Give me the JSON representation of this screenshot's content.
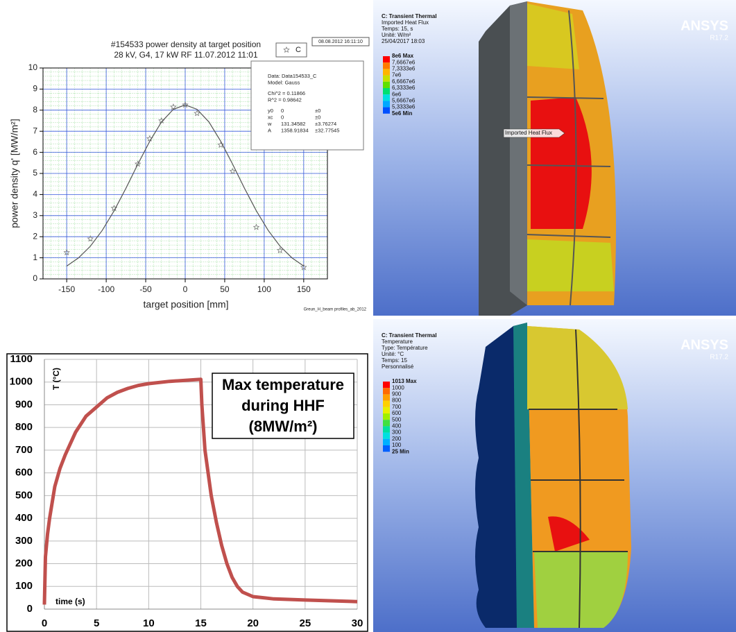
{
  "chart_data": [
    {
      "type": "scatter",
      "title": "#154533 power density at target position",
      "subtitle": "28 kV, G4, 17 kW RF   11.07.2012 11:01",
      "x_label": "target position [mm]",
      "y_label": "power density q' [MW/m²]",
      "xlim": [
        -180,
        180
      ],
      "ylim": [
        0,
        10
      ],
      "xticks": [
        -150,
        -100,
        -50,
        0,
        50,
        100,
        150
      ],
      "yticks": [
        0,
        1,
        2,
        3,
        4,
        5,
        6,
        7,
        8,
        9,
        10
      ],
      "grid": true,
      "series": [
        {
          "name": "C",
          "marker": "star",
          "color": "#777777",
          "x": [
            -150,
            -120,
            -90,
            -60,
            -45,
            -30,
            -15,
            0,
            15,
            45,
            60,
            90,
            120,
            150
          ],
          "values": [
            1.25,
            1.9,
            3.35,
            5.45,
            6.65,
            7.5,
            8.15,
            8.25,
            7.85,
            6.35,
            5.1,
            2.45,
            1.35,
            0.55
          ]
        },
        {
          "marker": "line",
          "color": "#555555",
          "x": [
            -150,
            -135,
            -120,
            -105,
            -90,
            -75,
            -60,
            -45,
            -30,
            -15,
            0,
            15,
            30,
            45,
            60,
            75,
            90,
            105,
            120,
            135,
            150
          ],
          "values": [
            0.61,
            1.0,
            1.55,
            2.3,
            3.23,
            4.3,
            5.44,
            6.52,
            7.44,
            8.04,
            8.25,
            8.04,
            7.44,
            6.52,
            5.44,
            4.3,
            3.23,
            2.3,
            1.55,
            1.0,
            0.61
          ]
        }
      ],
      "timestamp": "08.08.2012 16:11:10",
      "fit_box": [
        [
          "Data: Data154533_C"
        ],
        [
          "Model: Gauss"
        ],
        [
          "Chi^2  = 0.11866"
        ],
        [
          "R^2  = 0.98642"
        ],
        [
          "y0",
          "0",
          "±0"
        ],
        [
          "xc",
          "0",
          "±0"
        ],
        [
          "w",
          "131.34582",
          "±3.76274"
        ],
        [
          "A",
          "1358.91834",
          "±32.77545"
        ]
      ],
      "footer": "Greun_H_beam profiles_ab_2012"
    },
    {
      "type": "line",
      "x_label": "time (s)",
      "y_label": "T (°C)",
      "xlim": [
        0,
        30
      ],
      "ylim": [
        0,
        1100
      ],
      "xticks": [
        0,
        5,
        10,
        15,
        20,
        25,
        30
      ],
      "yticks": [
        0,
        100,
        200,
        300,
        400,
        500,
        600,
        700,
        800,
        900,
        1000,
        1100
      ],
      "grid": true,
      "series": [
        {
          "color": "#c0504d",
          "x": [
            0,
            0.1,
            0.3,
            0.5,
            1,
            1.5,
            2,
            3,
            4,
            5,
            6,
            7,
            8,
            9,
            10,
            12,
            14,
            15,
            15.1,
            15.4,
            16,
            16.5,
            17,
            17.5,
            18,
            18.5,
            19,
            20,
            22,
            25,
            30
          ],
          "values": [
            20,
            230,
            330,
            400,
            540,
            620,
            680,
            780,
            850,
            890,
            930,
            955,
            972,
            985,
            993,
            1003,
            1009,
            1012,
            900,
            700,
            500,
            380,
            280,
            200,
            140,
            100,
            75,
            55,
            45,
            40,
            33
          ]
        }
      ],
      "annotation": [
        "Max temperature",
        "during HHF",
        "(8MW/m²)"
      ]
    }
  ],
  "ansys_panels": [
    {
      "header": [
        "C: Transient Thermal",
        "Imported Heat Flux",
        "Temps: 15, s",
        "Unité: W/m²",
        "25/04/2017 18:03"
      ],
      "legend": [
        "8e6 Max",
        "7,6667e6",
        "7,3333e6",
        "7e6",
        "6,6667e6",
        "6,3333e6",
        "6e6",
        "5,6667e6",
        "5,3333e6",
        "5e6 Min"
      ],
      "colors": [
        "#ff0000",
        "#ff7a00",
        "#ffb400",
        "#c8e000",
        "#60e000",
        "#00e070",
        "#00e0e0",
        "#00a8ff",
        "#0050ff"
      ],
      "brand": "ANSYS",
      "version": "R17.2",
      "callout": "Imported Heat Flux"
    },
    {
      "header": [
        "C: Transient Thermal",
        "Temperature",
        "Type: Température",
        "Unité: °C",
        "Temps: 15",
        "Personnalisé"
      ],
      "legend": [
        "1013 Max",
        "1000",
        "900",
        "800",
        "700",
        "600",
        "500",
        "400",
        "300",
        "200",
        "100",
        "25 Min"
      ],
      "colors": [
        "#ff0000",
        "#ff6a00",
        "#ffa000",
        "#ffd000",
        "#e8f000",
        "#a0f000",
        "#40e040",
        "#00e0a0",
        "#00e0e0",
        "#00b0ff",
        "#0060ff"
      ],
      "brand": "ANSYS",
      "version": "R17.2"
    }
  ]
}
